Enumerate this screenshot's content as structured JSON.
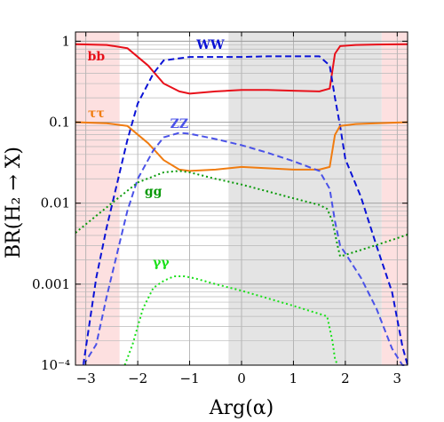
{
  "chart_data": {
    "type": "line",
    "title": "",
    "xlabel": "Arg(α)",
    "ylabel": "BR(H₂ → X)",
    "xlim": [
      -3.2,
      3.2
    ],
    "ylim": [
      0.0001,
      1.3
    ],
    "yscale": "log",
    "grid": true,
    "x_ticks": [
      -3,
      -2,
      -1,
      0,
      1,
      2,
      3
    ],
    "x_tick_labels": [
      "−3",
      "−2",
      "−1",
      "0",
      "1",
      "2",
      "3"
    ],
    "y_ticks": [
      0.0001,
      0.001,
      0.01,
      0.1,
      1
    ],
    "y_tick_labels": [
      "10⁻⁴",
      "0.001",
      "0.01",
      "0.1",
      "1"
    ],
    "shaded_regions": [
      {
        "x": [
          -3.2,
          -2.35
        ],
        "color": "#fde0e0"
      },
      {
        "x": [
          2.7,
          3.2
        ],
        "color": "#fde0e0"
      },
      {
        "x": [
          -0.25,
          2.7
        ],
        "color": "#e4e4e4"
      }
    ],
    "series": [
      {
        "name": "bb",
        "color": "#e8101a",
        "dash": "solid",
        "x": [
          -3.2,
          -2.6,
          -2.2,
          -1.8,
          -1.5,
          -1.2,
          -1.0,
          -0.5,
          0.0,
          0.5,
          1.0,
          1.5,
          1.7,
          1.8,
          1.9,
          2.2,
          2.6,
          3.2
        ],
        "y": [
          0.92,
          0.9,
          0.82,
          0.5,
          0.3,
          0.24,
          0.225,
          0.24,
          0.25,
          0.25,
          0.245,
          0.24,
          0.26,
          0.7,
          0.87,
          0.9,
          0.91,
          0.92
        ]
      },
      {
        "name": "WW",
        "color": "#0a12d6",
        "dash": "dashed",
        "x": [
          -3.05,
          -2.8,
          -2.6,
          -2.2,
          -2.0,
          -1.7,
          -1.5,
          -1.0,
          -0.5,
          0.0,
          0.5,
          1.0,
          1.5,
          1.7,
          1.8,
          1.9,
          2.0,
          2.3,
          2.6,
          2.9,
          3.1,
          3.2
        ],
        "y": [
          0.0001,
          0.0012,
          0.005,
          0.06,
          0.17,
          0.4,
          0.58,
          0.64,
          0.64,
          0.64,
          0.65,
          0.65,
          0.65,
          0.5,
          0.2,
          0.09,
          0.035,
          0.012,
          0.003,
          0.0008,
          0.00017,
          0.0001
        ]
      },
      {
        "name": "ττ",
        "color": "#f07c10",
        "dash": "solid",
        "x": [
          -3.2,
          -2.6,
          -2.2,
          -1.8,
          -1.5,
          -1.2,
          -1.0,
          -0.5,
          0.0,
          0.5,
          1.0,
          1.5,
          1.7,
          1.8,
          1.9,
          2.2,
          2.6,
          3.2
        ],
        "y": [
          0.1,
          0.097,
          0.09,
          0.055,
          0.034,
          0.026,
          0.025,
          0.026,
          0.028,
          0.027,
          0.026,
          0.026,
          0.028,
          0.07,
          0.09,
          0.095,
          0.097,
          0.1
        ]
      },
      {
        "name": "ZZ",
        "color": "#4a52e8",
        "dash": "dashed",
        "x": [
          -3.05,
          -2.8,
          -2.6,
          -2.2,
          -2.0,
          -1.7,
          -1.5,
          -1.2,
          -1.0,
          -0.5,
          0.0,
          0.5,
          1.0,
          1.5,
          1.7,
          1.8,
          1.9,
          2.0,
          2.3,
          2.6,
          2.9,
          3.1,
          3.2
        ],
        "y": [
          0.0001,
          0.00018,
          0.0007,
          0.008,
          0.02,
          0.045,
          0.065,
          0.074,
          0.072,
          0.062,
          0.052,
          0.042,
          0.033,
          0.025,
          0.015,
          0.006,
          0.003,
          0.0024,
          0.0012,
          0.0005,
          0.00016,
          0.0001,
          0.0001
        ]
      },
      {
        "name": "gg",
        "color": "#0a9a0a",
        "dash": "dotted",
        "x": [
          -3.2,
          -3.0,
          -2.5,
          -2.0,
          -1.5,
          -1.2,
          -1.0,
          -0.5,
          0.0,
          0.5,
          1.0,
          1.5,
          1.65,
          1.75,
          1.85,
          1.9,
          2.0,
          2.5,
          3.0,
          3.2
        ],
        "y": [
          0.0043,
          0.0055,
          0.01,
          0.018,
          0.024,
          0.025,
          0.024,
          0.02,
          0.017,
          0.014,
          0.0115,
          0.0095,
          0.0085,
          0.006,
          0.003,
          0.0022,
          0.0023,
          0.0029,
          0.0037,
          0.0041
        ]
      },
      {
        "name": "γγ",
        "color": "#1ae01a",
        "dash": "dotted",
        "x": [
          -2.25,
          -2.1,
          -1.9,
          -1.7,
          -1.5,
          -1.3,
          -1.1,
          -0.9,
          -0.5,
          0.0,
          0.5,
          1.0,
          1.5,
          1.65,
          1.75,
          1.8,
          1.85
        ],
        "y": [
          0.0001,
          0.00018,
          0.0005,
          0.0009,
          0.0011,
          0.00125,
          0.00125,
          0.00118,
          0.001,
          0.00083,
          0.00067,
          0.00054,
          0.00043,
          0.0004,
          0.0002,
          0.00012,
          0.0001
        ]
      }
    ],
    "annotations": [
      {
        "text": "bb",
        "x": -2.8,
        "y": 0.58,
        "color": "#e8101a"
      },
      {
        "text": "WW",
        "x": -0.6,
        "y": 0.8,
        "color": "#0a12d6"
      },
      {
        "text": "ττ",
        "x": -2.8,
        "y": 0.115,
        "color": "#f07c10"
      },
      {
        "text": "ZZ",
        "x": -1.2,
        "y": 0.085,
        "color": "#4a52e8"
      },
      {
        "text": "gg",
        "x": -1.7,
        "y": 0.0125,
        "color": "#0a9a0a"
      },
      {
        "text": "γγ",
        "x": -1.55,
        "y": 0.00165,
        "color": "#1ae01a"
      }
    ]
  }
}
